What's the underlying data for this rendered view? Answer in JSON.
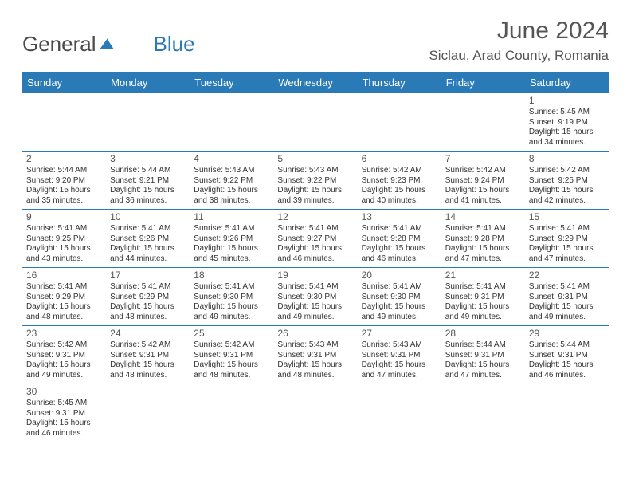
{
  "logo": {
    "text1": "General",
    "text2": "Blue"
  },
  "title": "June 2024",
  "location": "Siclau, Arad County, Romania",
  "weekdays": [
    "Sunday",
    "Monday",
    "Tuesday",
    "Wednesday",
    "Thursday",
    "Friday",
    "Saturday"
  ],
  "colors": {
    "header_bg": "#2a7ab8",
    "header_fg": "#ffffff",
    "text": "#333333",
    "title": "#555555"
  },
  "weeks": [
    [
      null,
      null,
      null,
      null,
      null,
      null,
      {
        "n": "1",
        "sr": "Sunrise: 5:45 AM",
        "ss": "Sunset: 9:19 PM",
        "d1": "Daylight: 15 hours",
        "d2": "and 34 minutes."
      }
    ],
    [
      {
        "n": "2",
        "sr": "Sunrise: 5:44 AM",
        "ss": "Sunset: 9:20 PM",
        "d1": "Daylight: 15 hours",
        "d2": "and 35 minutes."
      },
      {
        "n": "3",
        "sr": "Sunrise: 5:44 AM",
        "ss": "Sunset: 9:21 PM",
        "d1": "Daylight: 15 hours",
        "d2": "and 36 minutes."
      },
      {
        "n": "4",
        "sr": "Sunrise: 5:43 AM",
        "ss": "Sunset: 9:22 PM",
        "d1": "Daylight: 15 hours",
        "d2": "and 38 minutes."
      },
      {
        "n": "5",
        "sr": "Sunrise: 5:43 AM",
        "ss": "Sunset: 9:22 PM",
        "d1": "Daylight: 15 hours",
        "d2": "and 39 minutes."
      },
      {
        "n": "6",
        "sr": "Sunrise: 5:42 AM",
        "ss": "Sunset: 9:23 PM",
        "d1": "Daylight: 15 hours",
        "d2": "and 40 minutes."
      },
      {
        "n": "7",
        "sr": "Sunrise: 5:42 AM",
        "ss": "Sunset: 9:24 PM",
        "d1": "Daylight: 15 hours",
        "d2": "and 41 minutes."
      },
      {
        "n": "8",
        "sr": "Sunrise: 5:42 AM",
        "ss": "Sunset: 9:25 PM",
        "d1": "Daylight: 15 hours",
        "d2": "and 42 minutes."
      }
    ],
    [
      {
        "n": "9",
        "sr": "Sunrise: 5:41 AM",
        "ss": "Sunset: 9:25 PM",
        "d1": "Daylight: 15 hours",
        "d2": "and 43 minutes."
      },
      {
        "n": "10",
        "sr": "Sunrise: 5:41 AM",
        "ss": "Sunset: 9:26 PM",
        "d1": "Daylight: 15 hours",
        "d2": "and 44 minutes."
      },
      {
        "n": "11",
        "sr": "Sunrise: 5:41 AM",
        "ss": "Sunset: 9:26 PM",
        "d1": "Daylight: 15 hours",
        "d2": "and 45 minutes."
      },
      {
        "n": "12",
        "sr": "Sunrise: 5:41 AM",
        "ss": "Sunset: 9:27 PM",
        "d1": "Daylight: 15 hours",
        "d2": "and 46 minutes."
      },
      {
        "n": "13",
        "sr": "Sunrise: 5:41 AM",
        "ss": "Sunset: 9:28 PM",
        "d1": "Daylight: 15 hours",
        "d2": "and 46 minutes."
      },
      {
        "n": "14",
        "sr": "Sunrise: 5:41 AM",
        "ss": "Sunset: 9:28 PM",
        "d1": "Daylight: 15 hours",
        "d2": "and 47 minutes."
      },
      {
        "n": "15",
        "sr": "Sunrise: 5:41 AM",
        "ss": "Sunset: 9:29 PM",
        "d1": "Daylight: 15 hours",
        "d2": "and 47 minutes."
      }
    ],
    [
      {
        "n": "16",
        "sr": "Sunrise: 5:41 AM",
        "ss": "Sunset: 9:29 PM",
        "d1": "Daylight: 15 hours",
        "d2": "and 48 minutes."
      },
      {
        "n": "17",
        "sr": "Sunrise: 5:41 AM",
        "ss": "Sunset: 9:29 PM",
        "d1": "Daylight: 15 hours",
        "d2": "and 48 minutes."
      },
      {
        "n": "18",
        "sr": "Sunrise: 5:41 AM",
        "ss": "Sunset: 9:30 PM",
        "d1": "Daylight: 15 hours",
        "d2": "and 49 minutes."
      },
      {
        "n": "19",
        "sr": "Sunrise: 5:41 AM",
        "ss": "Sunset: 9:30 PM",
        "d1": "Daylight: 15 hours",
        "d2": "and 49 minutes."
      },
      {
        "n": "20",
        "sr": "Sunrise: 5:41 AM",
        "ss": "Sunset: 9:30 PM",
        "d1": "Daylight: 15 hours",
        "d2": "and 49 minutes."
      },
      {
        "n": "21",
        "sr": "Sunrise: 5:41 AM",
        "ss": "Sunset: 9:31 PM",
        "d1": "Daylight: 15 hours",
        "d2": "and 49 minutes."
      },
      {
        "n": "22",
        "sr": "Sunrise: 5:41 AM",
        "ss": "Sunset: 9:31 PM",
        "d1": "Daylight: 15 hours",
        "d2": "and 49 minutes."
      }
    ],
    [
      {
        "n": "23",
        "sr": "Sunrise: 5:42 AM",
        "ss": "Sunset: 9:31 PM",
        "d1": "Daylight: 15 hours",
        "d2": "and 49 minutes."
      },
      {
        "n": "24",
        "sr": "Sunrise: 5:42 AM",
        "ss": "Sunset: 9:31 PM",
        "d1": "Daylight: 15 hours",
        "d2": "and 48 minutes."
      },
      {
        "n": "25",
        "sr": "Sunrise: 5:42 AM",
        "ss": "Sunset: 9:31 PM",
        "d1": "Daylight: 15 hours",
        "d2": "and 48 minutes."
      },
      {
        "n": "26",
        "sr": "Sunrise: 5:43 AM",
        "ss": "Sunset: 9:31 PM",
        "d1": "Daylight: 15 hours",
        "d2": "and 48 minutes."
      },
      {
        "n": "27",
        "sr": "Sunrise: 5:43 AM",
        "ss": "Sunset: 9:31 PM",
        "d1": "Daylight: 15 hours",
        "d2": "and 47 minutes."
      },
      {
        "n": "28",
        "sr": "Sunrise: 5:44 AM",
        "ss": "Sunset: 9:31 PM",
        "d1": "Daylight: 15 hours",
        "d2": "and 47 minutes."
      },
      {
        "n": "29",
        "sr": "Sunrise: 5:44 AM",
        "ss": "Sunset: 9:31 PM",
        "d1": "Daylight: 15 hours",
        "d2": "and 46 minutes."
      }
    ],
    [
      {
        "n": "30",
        "sr": "Sunrise: 5:45 AM",
        "ss": "Sunset: 9:31 PM",
        "d1": "Daylight: 15 hours",
        "d2": "and 46 minutes."
      },
      null,
      null,
      null,
      null,
      null,
      null
    ]
  ]
}
